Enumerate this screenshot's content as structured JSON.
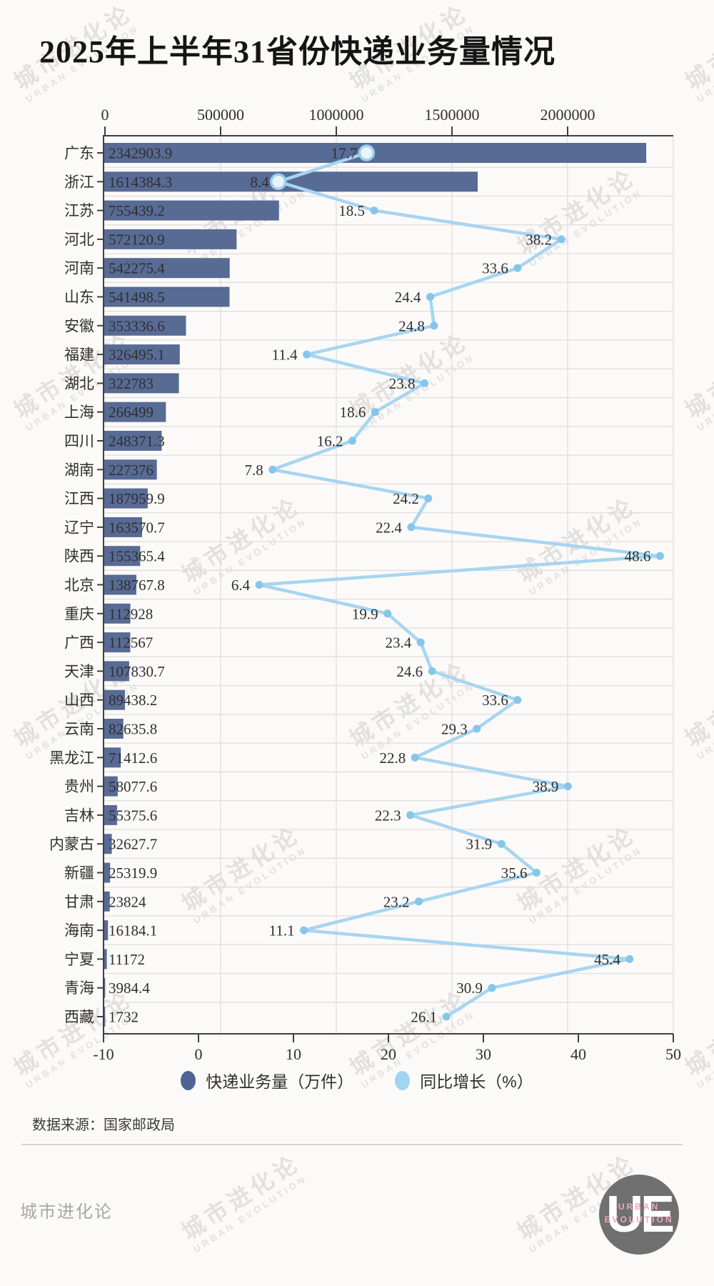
{
  "title": "2025年上半年31省份快递业务量情况",
  "chart_data": {
    "type": "bar",
    "orientation": "horizontal",
    "title": "2025年上半年31省份快递业务量情况",
    "categories": [
      "广东",
      "浙江",
      "江苏",
      "河北",
      "河南",
      "山东",
      "安徽",
      "福建",
      "湖北",
      "上海",
      "四川",
      "湖南",
      "江西",
      "辽宁",
      "陕西",
      "北京",
      "重庆",
      "广西",
      "天津",
      "山西",
      "云南",
      "黑龙江",
      "贵州",
      "吉林",
      "内蒙古",
      "新疆",
      "甘肃",
      "海南",
      "宁夏",
      "青海",
      "西藏"
    ],
    "series": [
      {
        "name": "快递业务量（万件）",
        "type": "bar",
        "values": [
          2342903.9,
          1614384.3,
          755439.2,
          572120.9,
          542275.4,
          541498.5,
          353336.6,
          326495.1,
          322783,
          266499,
          248371.3,
          227376,
          187959.9,
          163570.7,
          155365.4,
          138767.8,
          112928,
          112567,
          107830.7,
          89438.2,
          82635.8,
          71412.6,
          58077.6,
          55375.6,
          32627.7,
          25319.9,
          23824,
          16184.1,
          11172,
          3984.4,
          1732
        ]
      },
      {
        "name": "同比增长（%）",
        "type": "line",
        "values": [
          17.7,
          8.4,
          18.5,
          38.2,
          33.6,
          24.4,
          24.8,
          11.4,
          23.8,
          18.6,
          16.2,
          7.8,
          24.2,
          22.4,
          48.6,
          6.4,
          19.9,
          23.4,
          24.6,
          33.6,
          29.3,
          22.8,
          38.9,
          22.3,
          31.9,
          35.6,
          23.2,
          11.1,
          45.4,
          30.9,
          26.1
        ]
      }
    ],
    "volume_axis": {
      "position": "top",
      "ticks": [
        0,
        500000,
        1000000,
        1500000,
        2000000
      ]
    },
    "growth_axis": {
      "position": "bottom",
      "ticks": [
        -10,
        0,
        10,
        20,
        30,
        40,
        50
      ],
      "range": [
        -10,
        50
      ]
    },
    "highlighted": [
      "广东",
      "浙江"
    ],
    "grid": true,
    "legend_position": "bottom"
  },
  "legend": {
    "items": [
      {
        "label": "快递业务量（万件）",
        "color": "#4e6492"
      },
      {
        "label": "同比增长（%）",
        "color": "#a0d4f1"
      }
    ]
  },
  "source": "数据来源：国家邮政局",
  "footer": {
    "brand": "城市进化论",
    "logo_text": "UE",
    "logo_sub": "URBAN EVOLUTION"
  },
  "watermark": {
    "line1": "城市进化论",
    "line2": "URBAN EVOLUTION"
  },
  "colors": {
    "background": "#fbfaf8",
    "bar": "#586b95",
    "line": "#a7d5f1",
    "dot": "#85c6ea",
    "dot_highlight_fill": "#e8f3fb",
    "dot_highlight_stroke": "#99ceee",
    "grid": "#dcdcdc",
    "axis": "#3f3f3f",
    "text": "#2f2f2f",
    "divider": "#d6d5d3",
    "brand_gray": "#a8a7a5",
    "logo_circle": "#707070",
    "logo_pink": "#f3a3c0",
    "watermark": "#cecdcb"
  }
}
